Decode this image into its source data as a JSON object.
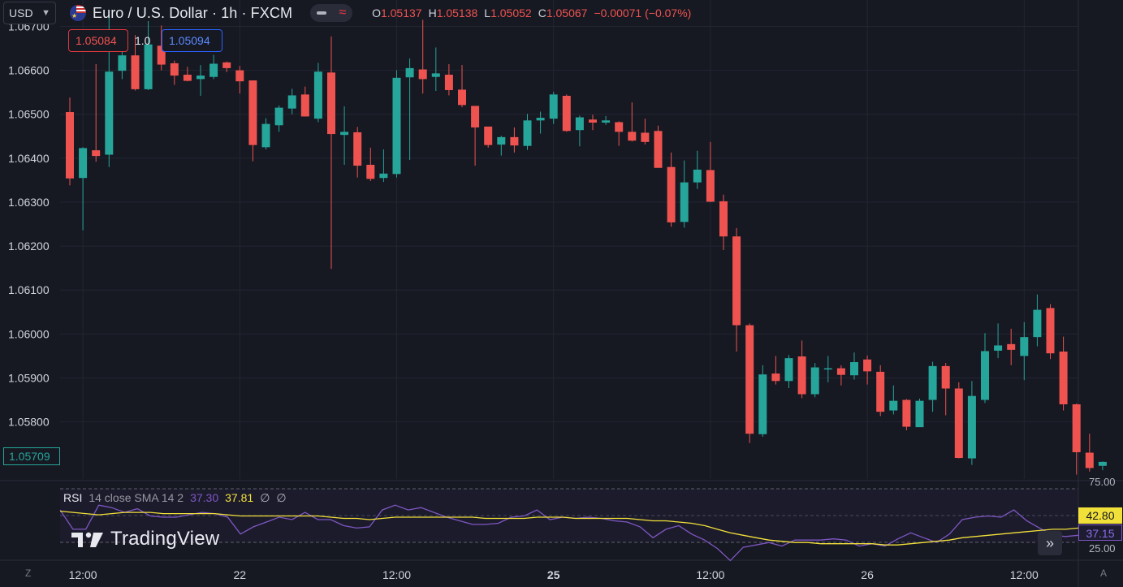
{
  "currency": {
    "label": "USD"
  },
  "symbol": {
    "title": "Euro / U.S. Dollar · 1h · FXCM"
  },
  "ohlc": {
    "o_label": "O",
    "o_value": "1.05137",
    "h_label": "H",
    "h_value": "1.05138",
    "l_label": "L",
    "l_value": "1.05052",
    "c_label": "C",
    "c_value": "1.05067",
    "change": "−0.00071 (−0.07%)"
  },
  "trade": {
    "sell": "1.05084",
    "spread": "1.0",
    "buy": "1.05094"
  },
  "current_price": "1.05709",
  "rsi_legend": {
    "name": "RSI",
    "params": "14 close SMA 14 2",
    "rsi_value": "37.30",
    "ma_value": "37.81",
    "empty1": "∅",
    "empty2": "∅"
  },
  "rsi_badges": {
    "ma": "42.80",
    "rsi": "37.15"
  },
  "rsi_levels": {
    "upper": "75.00",
    "lower": "25.00"
  },
  "branding": {
    "logo_text": "TradingView"
  },
  "controls": {
    "scroll_right": "»",
    "z_label": "Z",
    "a_label": "A"
  },
  "colors": {
    "up": "#26a69a",
    "down": "#ef5350",
    "rsi": "#7e57c2",
    "rsi_ma": "#f2e03a",
    "background": "#161822"
  },
  "chart_data": {
    "type": "candlestick",
    "price_ticks": [
      "1.06700",
      "1.06600",
      "1.06500",
      "1.06400",
      "1.06300",
      "1.06200",
      "1.06100",
      "1.06000",
      "1.05900",
      "1.05800"
    ],
    "ylim": [
      1.0567,
      1.0676
    ],
    "time_labels": [
      {
        "label": "12:00",
        "index": 1,
        "bold": false
      },
      {
        "label": "22",
        "index": 13,
        "bold": false
      },
      {
        "label": "12:00",
        "index": 25,
        "bold": false
      },
      {
        "label": "25",
        "index": 37,
        "bold": true
      },
      {
        "label": "12:00",
        "index": 49,
        "bold": false
      },
      {
        "label": "26",
        "index": 61,
        "bold": false
      },
      {
        "label": "12:00",
        "index": 73,
        "bold": false
      }
    ],
    "candles": [
      [
        1.06505,
        1.06538,
        1.06338,
        1.06354
      ],
      [
        1.06355,
        1.06425,
        1.06236,
        1.06423
      ],
      [
        1.06418,
        1.06614,
        1.06392,
        1.06405
      ],
      [
        1.06408,
        1.06727,
        1.0638,
        1.06597
      ],
      [
        1.06599,
        1.06692,
        1.0658,
        1.06634
      ],
      [
        1.06634,
        1.0668,
        1.06554,
        1.06557
      ],
      [
        1.06557,
        1.06712,
        1.06555,
        1.06659
      ],
      [
        1.06656,
        1.06702,
        1.066,
        1.06613
      ],
      [
        1.06616,
        1.06622,
        1.06567,
        1.06588
      ],
      [
        1.0659,
        1.06608,
        1.06575,
        1.06576
      ],
      [
        1.0658,
        1.06612,
        1.06542,
        1.06588
      ],
      [
        1.06585,
        1.06635,
        1.0658,
        1.06615
      ],
      [
        1.06618,
        1.0662,
        1.06596,
        1.06605
      ],
      [
        1.066,
        1.0661,
        1.06547,
        1.06575
      ],
      [
        1.06577,
        1.06577,
        1.06393,
        1.0643
      ],
      [
        1.06425,
        1.06491,
        1.0642,
        1.06478
      ],
      [
        1.06475,
        1.0652,
        1.0646,
        1.06515
      ],
      [
        1.06513,
        1.06558,
        1.065,
        1.06543
      ],
      [
        1.06545,
        1.06563,
        1.06495,
        1.06495
      ],
      [
        1.0649,
        1.06617,
        1.06482,
        1.06597
      ],
      [
        1.06595,
        1.06677,
        1.06148,
        1.06455
      ],
      [
        1.06453,
        1.06518,
        1.06385,
        1.0646
      ],
      [
        1.06459,
        1.06471,
        1.06356,
        1.06383
      ],
      [
        1.06385,
        1.06424,
        1.06348,
        1.06353
      ],
      [
        1.06355,
        1.0642,
        1.06346,
        1.06365
      ],
      [
        1.06364,
        1.066,
        1.06356,
        1.06583
      ],
      [
        1.06584,
        1.06627,
        1.06396,
        1.06605
      ],
      [
        1.06602,
        1.06715,
        1.06547,
        1.0658
      ],
      [
        1.06585,
        1.06652,
        1.06553,
        1.06593
      ],
      [
        1.0659,
        1.06614,
        1.06543,
        1.06555
      ],
      [
        1.06556,
        1.06612,
        1.06516,
        1.06521
      ],
      [
        1.06519,
        1.06515,
        1.06383,
        1.0647
      ],
      [
        1.06472,
        1.06471,
        1.06424,
        1.0643
      ],
      [
        1.06431,
        1.06451,
        1.06406,
        1.06448
      ],
      [
        1.06448,
        1.0647,
        1.06413,
        1.06429
      ],
      [
        1.06428,
        1.06501,
        1.06419,
        1.06486
      ],
      [
        1.06486,
        1.06506,
        1.06456,
        1.06492
      ],
      [
        1.0649,
        1.06551,
        1.06478,
        1.06545
      ],
      [
        1.06542,
        1.06545,
        1.0646,
        1.06462
      ],
      [
        1.06464,
        1.06497,
        1.06427,
        1.06493
      ],
      [
        1.06488,
        1.06499,
        1.06464,
        1.06481
      ],
      [
        1.06481,
        1.06496,
        1.06476,
        1.06486
      ],
      [
        1.06482,
        1.06484,
        1.06428,
        1.0646
      ],
      [
        1.0646,
        1.06527,
        1.06438,
        1.0644
      ],
      [
        1.06458,
        1.0649,
        1.06431,
        1.06437
      ],
      [
        1.06462,
        1.06474,
        1.06379,
        1.06378
      ],
      [
        1.0638,
        1.06413,
        1.06244,
        1.06254
      ],
      [
        1.06255,
        1.06395,
        1.06242,
        1.06345
      ],
      [
        1.06345,
        1.06417,
        1.0633,
        1.06374
      ],
      [
        1.06373,
        1.06437,
        1.063,
        1.06301
      ],
      [
        1.06302,
        1.06317,
        1.06191,
        1.06222
      ],
      [
        1.06222,
        1.06241,
        1.0596,
        1.0602
      ],
      [
        1.0602,
        1.06024,
        1.05752,
        1.05773
      ],
      [
        1.05772,
        1.05929,
        1.05766,
        1.05908
      ],
      [
        1.0591,
        1.0595,
        1.05885,
        1.05893
      ],
      [
        1.05893,
        1.05952,
        1.05877,
        1.05945
      ],
      [
        1.05949,
        1.05985,
        1.05854,
        1.05863
      ],
      [
        1.05863,
        1.05934,
        1.05856,
        1.05924
      ],
      [
        1.05922,
        1.0595,
        1.0589,
        1.05922
      ],
      [
        1.05922,
        1.05929,
        1.05883,
        1.05907
      ],
      [
        1.05906,
        1.05958,
        1.05896,
        1.05936
      ],
      [
        1.05942,
        1.05951,
        1.05885,
        1.05915
      ],
      [
        1.05914,
        1.05929,
        1.05813,
        1.05823
      ],
      [
        1.05826,
        1.05883,
        1.05817,
        1.05848
      ],
      [
        1.0585,
        1.05852,
        1.05781,
        1.05789
      ],
      [
        1.05788,
        1.05853,
        1.05791,
        1.05848
      ],
      [
        1.0585,
        1.05937,
        1.05823,
        1.05927
      ],
      [
        1.05927,
        1.05934,
        1.05815,
        1.05876
      ],
      [
        1.05876,
        1.0589,
        1.05717,
        1.05718
      ],
      [
        1.05717,
        1.05893,
        1.05702,
        1.05859
      ],
      [
        1.0585,
        1.06002,
        1.05843,
        1.05961
      ],
      [
        1.05962,
        1.06024,
        1.05945,
        1.05974
      ],
      [
        1.05977,
        1.06012,
        1.05929,
        1.05964
      ],
      [
        1.0595,
        1.06027,
        1.05895,
        1.05993
      ],
      [
        1.05993,
        1.0609,
        1.05972,
        1.06055
      ],
      [
        1.06059,
        1.06068,
        1.05943,
        1.05956
      ],
      [
        1.0596,
        1.05994,
        1.05826,
        1.0584
      ],
      [
        1.0584,
        1.05842,
        1.0568,
        1.05731
      ],
      [
        1.0573,
        1.05773,
        1.05687,
        1.05695
      ],
      [
        1.057,
        1.0571,
        1.0569,
        1.05709
      ]
    ],
    "rsi": [
      58,
      42,
      42,
      62,
      60,
      56,
      59,
      53,
      52,
      52,
      54,
      56,
      55,
      52,
      38,
      44,
      48,
      52,
      50,
      56,
      50,
      50,
      45,
      43,
      44,
      58,
      62,
      58,
      60,
      56,
      52,
      49,
      46,
      46,
      47,
      52,
      53,
      58,
      50,
      52,
      51,
      52,
      51,
      49,
      48,
      44,
      35,
      42,
      45,
      38,
      33,
      26,
      16,
      27,
      29,
      31,
      28,
      33,
      33,
      33,
      34,
      33,
      28,
      30,
      28,
      34,
      39,
      35,
      31,
      38,
      50,
      52,
      53,
      52,
      58,
      49,
      43,
      37,
      36,
      37
    ],
    "rsi_ma": [
      57,
      56,
      55,
      54,
      55,
      56,
      56,
      56,
      55,
      55,
      55,
      55,
      55,
      54,
      53,
      53,
      53,
      53,
      53,
      53,
      53,
      52,
      51,
      51,
      50,
      51,
      52,
      52,
      52,
      52,
      52,
      52,
      52,
      51,
      51,
      51,
      51,
      52,
      52,
      52,
      51,
      51,
      51,
      51,
      51,
      50,
      49,
      49,
      48,
      47,
      45,
      42,
      39,
      37,
      35,
      33,
      32,
      31,
      31,
      30,
      30,
      30,
      30,
      30,
      29,
      29,
      30,
      31,
      32,
      33,
      35,
      36,
      37,
      38,
      39,
      40,
      41,
      42,
      42,
      43
    ],
    "rsi_ylim": [
      19,
      81
    ]
  }
}
